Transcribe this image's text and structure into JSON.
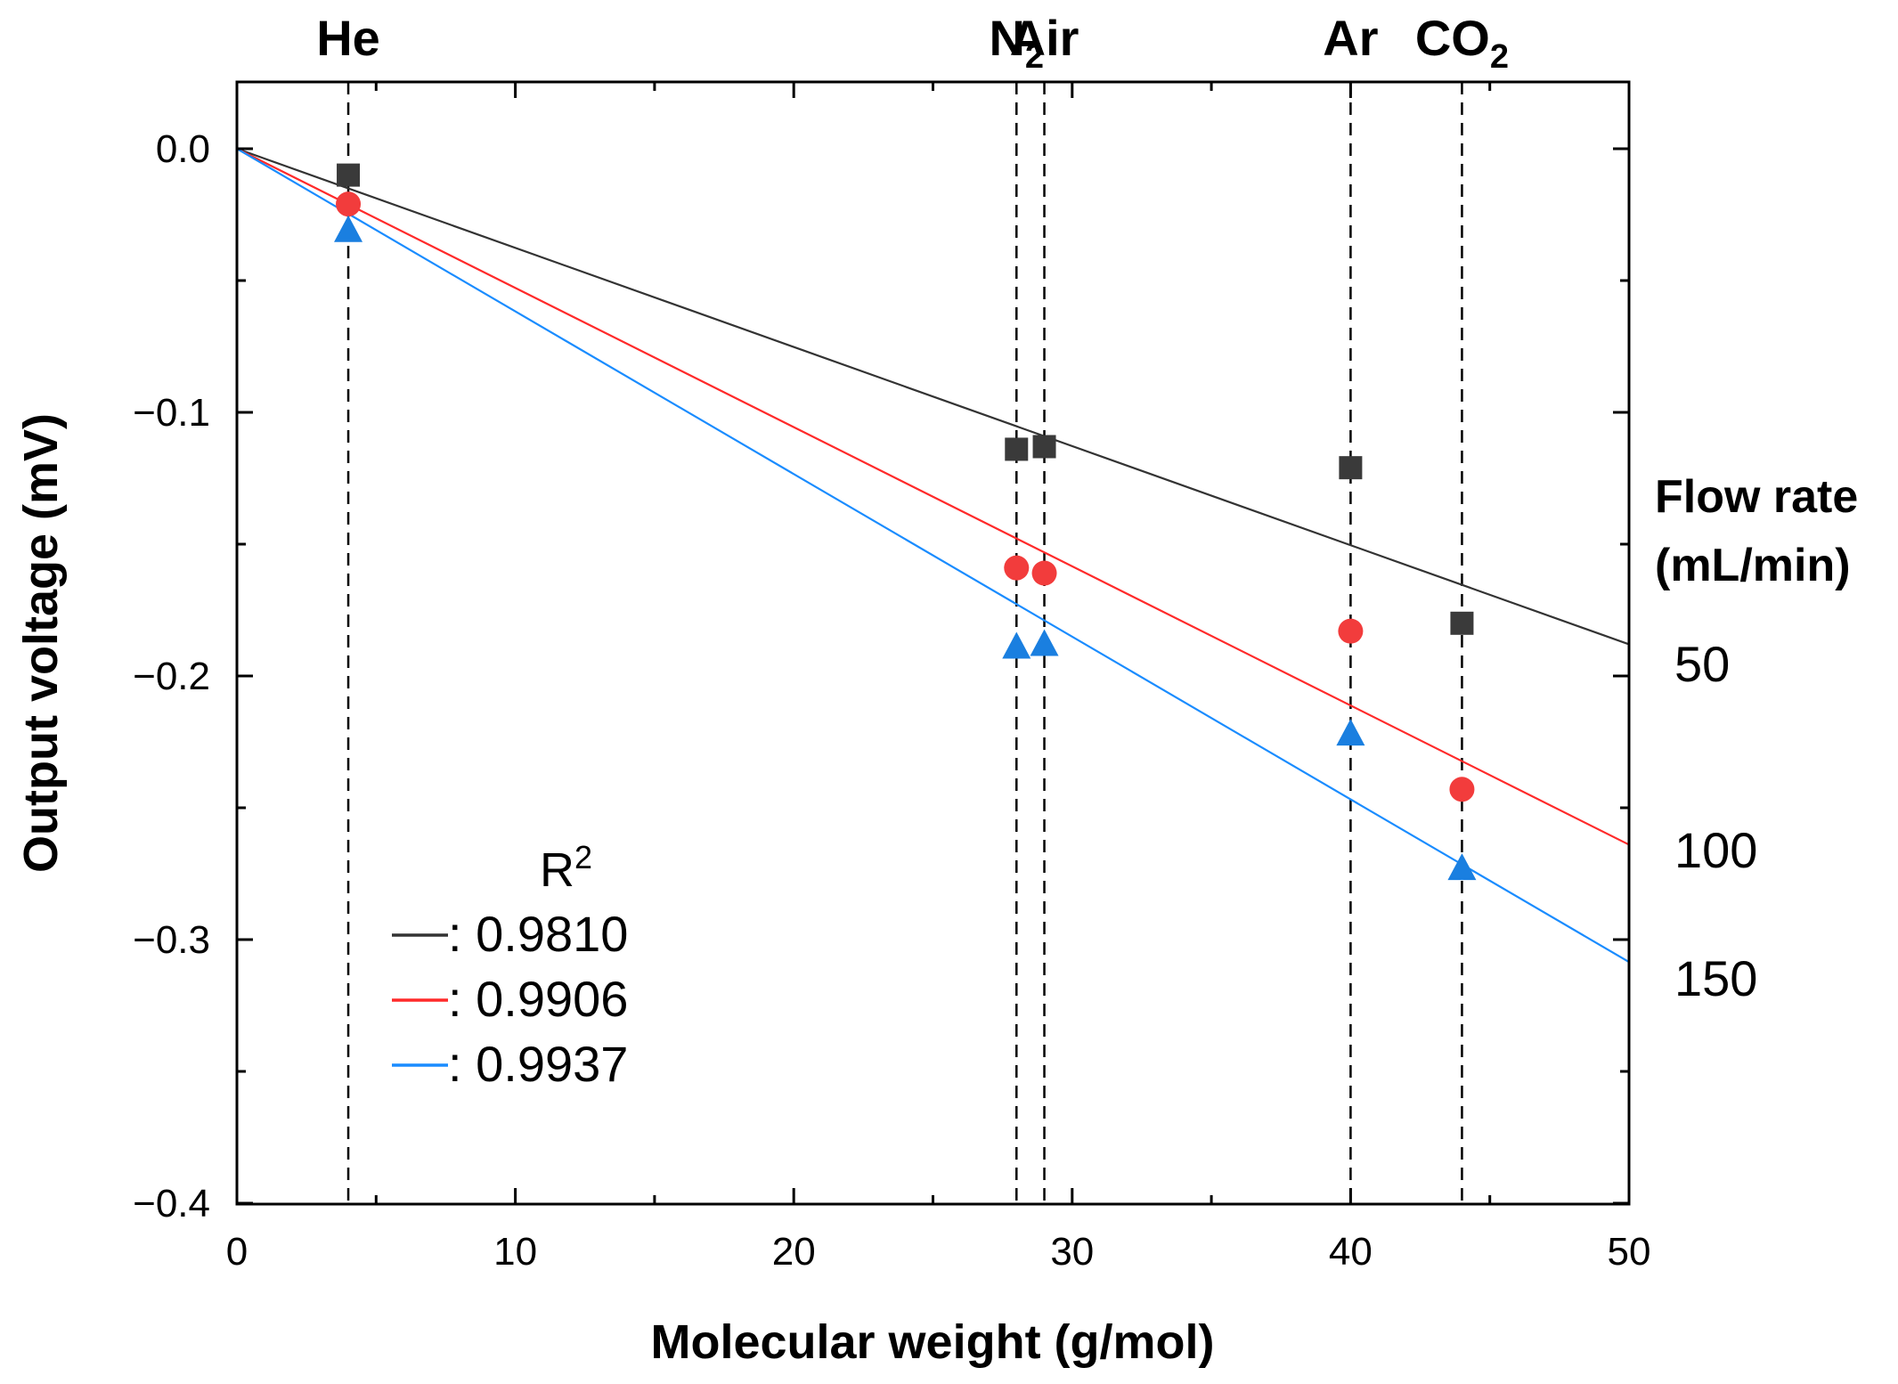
{
  "chart_data": {
    "type": "scatter",
    "title": "",
    "xlabel": "Molecular weight (g/mol)",
    "ylabel": "Output voltage (mV)",
    "xlim": [
      0,
      50
    ],
    "ylim": [
      -0.4,
      0.03
    ],
    "xticks": [
      0,
      10,
      20,
      30,
      40,
      50
    ],
    "xtick_labels": [
      "0",
      "10",
      "20",
      "30",
      "40",
      "50"
    ],
    "yticks": [
      0.0,
      -0.1,
      -0.2,
      -0.3,
      -0.4
    ],
    "ytick_labels": [
      "0.0",
      "−0.1",
      "−0.2",
      "−0.3",
      "−0.4"
    ],
    "gases": [
      {
        "name": "He",
        "sub": "",
        "mw": 4.0
      },
      {
        "name": "N",
        "sub": "2",
        "mw": 28.0
      },
      {
        "name": "Air",
        "sub": "",
        "mw": 29.0
      },
      {
        "name": "Ar",
        "sub": "",
        "mw": 40.0
      },
      {
        "name": "CO",
        "sub": "2",
        "mw": 44.0
      }
    ],
    "flow_rate_title_line1": "Flow rate",
    "flow_rate_title_line2": "(mL/min)",
    "legend_title": "R",
    "legend_title_sup": "2",
    "series": [
      {
        "name": "50 mL/min",
        "flow_label": "50",
        "r2_label": ": 0.9810",
        "marker": "square",
        "marker_color": "#3a3a3a",
        "line_color": "#333333",
        "fit_slope": -0.00376,
        "x": [
          4.0,
          28.0,
          29.0,
          40.0,
          44.0
        ],
        "y": [
          -0.01,
          -0.114,
          -0.113,
          -0.121,
          -0.18
        ]
      },
      {
        "name": "100 mL/min",
        "flow_label": "100",
        "r2_label": ": 0.9906",
        "marker": "circle",
        "marker_color": "#f23c3c",
        "line_color": "#ff2a2a",
        "fit_slope": -0.00528,
        "x": [
          4.0,
          28.0,
          29.0,
          40.0,
          44.0
        ],
        "y": [
          -0.021,
          -0.159,
          -0.161,
          -0.183,
          -0.243
        ]
      },
      {
        "name": "150 mL/min",
        "flow_label": "150",
        "r2_label": ": 0.9937",
        "marker": "triangle",
        "marker_color": "#1a7fe0",
        "line_color": "#1a8cff",
        "fit_slope": -0.00617,
        "x": [
          4.0,
          28.0,
          29.0,
          40.0,
          44.0
        ],
        "y": [
          -0.031,
          -0.189,
          -0.188,
          -0.222,
          -0.273
        ]
      }
    ]
  }
}
